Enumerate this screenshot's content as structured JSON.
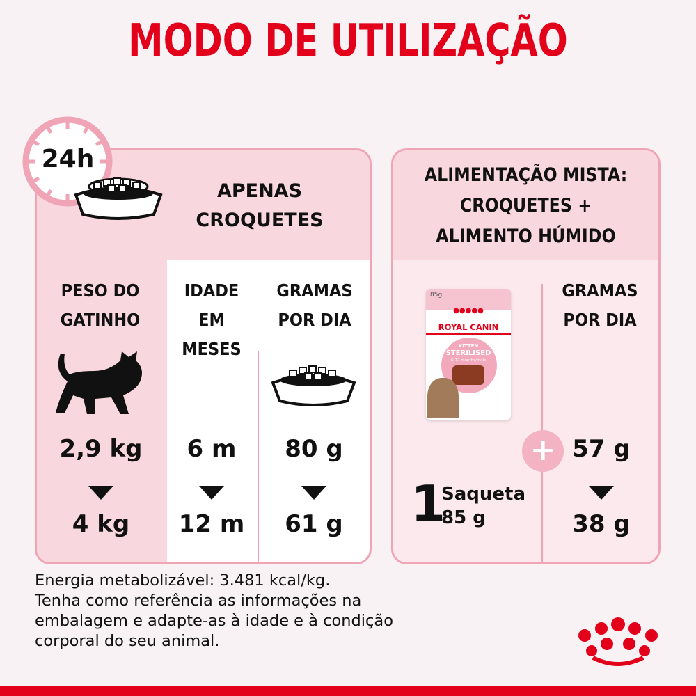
{
  "title": "MODO DE UTILIZAÇÃO",
  "left": {
    "clock": "24h",
    "heading": [
      "APENAS",
      "CROQUETES"
    ],
    "columns": [
      {
        "label": [
          "PESO DO",
          "GATINHO"
        ],
        "from": "2,9 kg",
        "to": "4 kg"
      },
      {
        "label": [
          "IDADE EM",
          "MESES"
        ],
        "from": "6 m",
        "to": "12 m"
      },
      {
        "label": [
          "GRAMAS",
          "POR DIA"
        ],
        "from": "80 g",
        "to": "61 g"
      }
    ]
  },
  "right": {
    "heading": [
      "ALIMENTAÇÃO MISTA:",
      "CROQUETES +",
      "ALIMENTO HÚMIDO"
    ],
    "pouch": {
      "weight": "85g",
      "brand": "ROYAL CANIN",
      "line1": "KITTEN",
      "line2": "STERILISED",
      "line3": "6-12 months/mois"
    },
    "sachet_count": "1",
    "sachet_label": "Saqueta",
    "sachet_weight": "85 g",
    "column": {
      "label": [
        "GRAMAS",
        "POR DIA"
      ],
      "from": "57 g",
      "to": "38 g"
    }
  },
  "footer": [
    "Energia metabolizável: 3.481 kcal/kg.",
    "Tenha como referência as informações na",
    "embalagem e adapte-as à idade e à condição",
    "corporal do seu animal."
  ],
  "colors": {
    "brand_red": "#e2001a",
    "pink": "#f0a5b6",
    "light_pink": "#f8d7df"
  }
}
